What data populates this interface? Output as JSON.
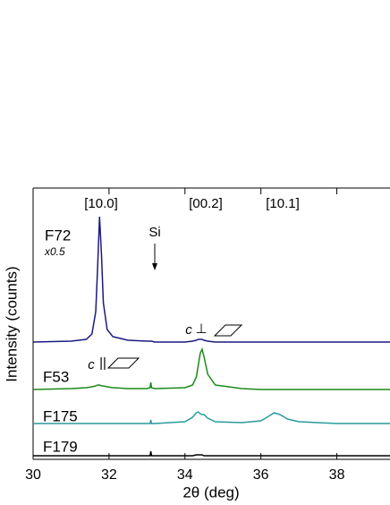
{
  "chart_data": {
    "type": "line",
    "xlabel": "2θ  (deg)",
    "ylabel": "Intensity  (counts)",
    "x": [
      30,
      31,
      31.4,
      31.55,
      31.65,
      31.7,
      31.75,
      31.8,
      31.85,
      31.95,
      32.1,
      32.5,
      33.0,
      33.08,
      33.1,
      33.12,
      33.2,
      34.0,
      34.2,
      34.3,
      34.35,
      34.4,
      34.45,
      34.5,
      34.6,
      34.8,
      35.5,
      36.0,
      36.2,
      36.35,
      36.5,
      36.7,
      37.0,
      38.0,
      39.4
    ],
    "series": [
      {
        "name": "F72",
        "color": "#1a1a80",
        "values": [
          131,
          132,
          134,
          140,
          165,
          215,
          271,
          230,
          175,
          145,
          137,
          133,
          132,
          132,
          132,
          132,
          131,
          131,
          132,
          133,
          134,
          134,
          134,
          133,
          132,
          131,
          131,
          131,
          131,
          131,
          131,
          131,
          131,
          131,
          131
        ]
      },
      {
        "name": "F53",
        "color": "#1a8a1a",
        "values": [
          78,
          79,
          80,
          81,
          82,
          83,
          83,
          82,
          82,
          81,
          80,
          79,
          79,
          80,
          86,
          80,
          79,
          80,
          83,
          92,
          105,
          118,
          123,
          115,
          95,
          83,
          79,
          78,
          78,
          78,
          78,
          78,
          78,
          78,
          78
        ]
      },
      {
        "name": "F175",
        "color": "#2a9a9a",
        "values": [
          40,
          40,
          40,
          40,
          40,
          40,
          40,
          40,
          40,
          40,
          40,
          40,
          40,
          40,
          44,
          40,
          40,
          42,
          47,
          52,
          53,
          51,
          50,
          50,
          46,
          42,
          41,
          43,
          48,
          52,
          50,
          45,
          42,
          40,
          40
        ]
      },
      {
        "name": "F179",
        "color": "#000000",
        "values": [
          4,
          4,
          4,
          4,
          4,
          4,
          4,
          4,
          4,
          4,
          4,
          4,
          4,
          4,
          9,
          4,
          4,
          4,
          4,
          5,
          5,
          5,
          5,
          4,
          4,
          4,
          4,
          4,
          4,
          4,
          4,
          4,
          4,
          4,
          4
        ]
      }
    ],
    "annotations": [
      "[10.0]",
      "[00.2]",
      "[10.1]",
      "Si",
      "x0.5",
      "c",
      "⊥",
      "c",
      "||"
    ],
    "xlim": [
      30,
      39.4
    ],
    "ylim": [
      0,
      303
    ],
    "xticks": [
      30,
      32,
      34,
      36,
      38
    ]
  }
}
